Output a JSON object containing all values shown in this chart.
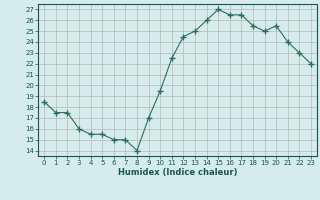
{
  "x": [
    0,
    1,
    2,
    3,
    4,
    5,
    6,
    7,
    8,
    9,
    10,
    11,
    12,
    13,
    14,
    15,
    16,
    17,
    18,
    19,
    20,
    21,
    22,
    23
  ],
  "y": [
    18.5,
    17.5,
    17.5,
    16.0,
    15.5,
    15.5,
    15.0,
    15.0,
    14.0,
    17.0,
    19.5,
    22.5,
    24.5,
    25.0,
    26.0,
    27.0,
    26.5,
    26.5,
    25.5,
    25.0,
    25.5,
    24.0,
    23.0,
    22.0
  ],
  "line_color": "#2d6e62",
  "marker": "+",
  "marker_size": 4,
  "bg_color": "#d5ecea",
  "grid_color": "#b8b8b8",
  "xlabel": "Humidex (Indice chaleur)",
  "ylabel_ticks": [
    14,
    15,
    16,
    17,
    18,
    19,
    20,
    21,
    22,
    23,
    24,
    25,
    26,
    27
  ],
  "xlim": [
    -0.5,
    23.5
  ],
  "ylim": [
    13.5,
    27.5
  ],
  "font_color": "#1a5555",
  "xtick_labels": [
    "0",
    "1",
    "2",
    "3",
    "4",
    "5",
    "6",
    "7",
    "8",
    "9",
    "10",
    "11",
    "12",
    "13",
    "14",
    "15",
    "16",
    "17",
    "18",
    "19",
    "20",
    "21",
    "22",
    "23"
  ]
}
